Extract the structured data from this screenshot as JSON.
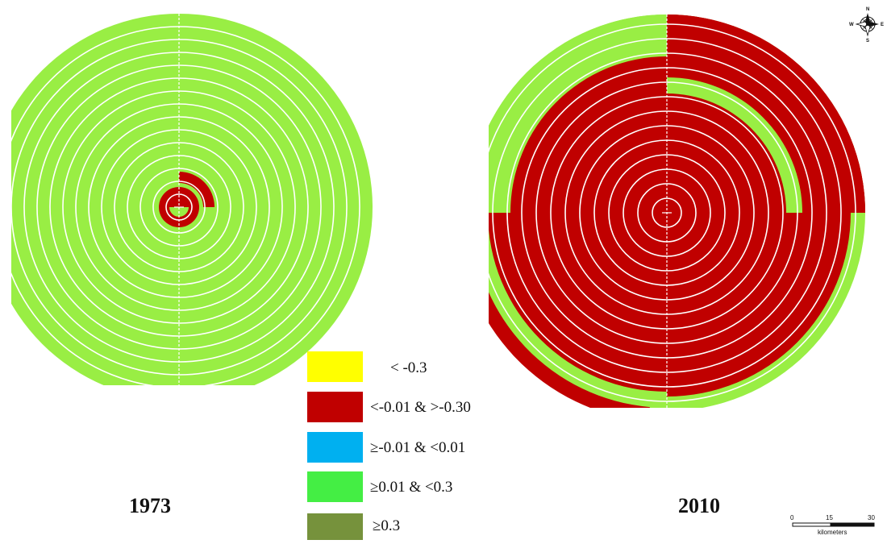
{
  "colors": {
    "yellow": "#ffff00",
    "red": "#c00000",
    "blue": "#00b0f0",
    "green": "#99ee44",
    "olive": "#76923c",
    "ring_line": "#ffffff"
  },
  "maps": [
    {
      "year": "1973"
    },
    {
      "year": "2010"
    }
  ],
  "legend": [
    {
      "label": "< -0.3",
      "color": "#ffff00"
    },
    {
      "label": "<-0.01 & >-0.30",
      "color": "#c00000"
    },
    {
      "label": "≥-0.01 & <0.01",
      "color": "#00b0f0"
    },
    {
      "label": "≥0.01 & <0.3",
      "color": "#44ee44"
    },
    {
      "label": "≥0.3",
      "color": "#76923c"
    }
  ],
  "compass": {
    "n": "N",
    "s": "S",
    "e": "E",
    "w": "W"
  },
  "scale_bar": {
    "ticks": [
      "0",
      "15",
      "30"
    ],
    "unit": "kilometers"
  }
}
